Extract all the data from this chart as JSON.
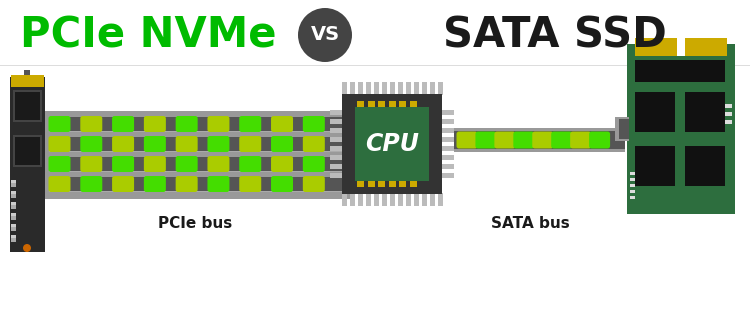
{
  "title_left": "PCIe NVMe",
  "title_vs": "VS",
  "title_right": "SATA SSD",
  "title_left_color": "#00bb00",
  "title_right_color": "#1a1a1a",
  "title_vs_bg": "#444444",
  "title_vs_color": "#ffffff",
  "label_pcie": "PCIe bus",
  "label_sata": "SATA bus",
  "label_color": "#1a1a1a",
  "bg_color": "#ffffff",
  "green_bright": "#44dd00",
  "yellow_green": "#aacc00",
  "gray_dark": "#555555",
  "gray_medium": "#999999",
  "gray_light": "#bbbbbb",
  "gray_chip": "#333333",
  "gold": "#ccaa00",
  "pcb_green": "#2d6e3e",
  "m2_body": "#2a2a2a",
  "cpu_core_green": "#2d6e3e",
  "white": "#ffffff",
  "black": "#111111",
  "dashed_line": "#aaaaaa"
}
